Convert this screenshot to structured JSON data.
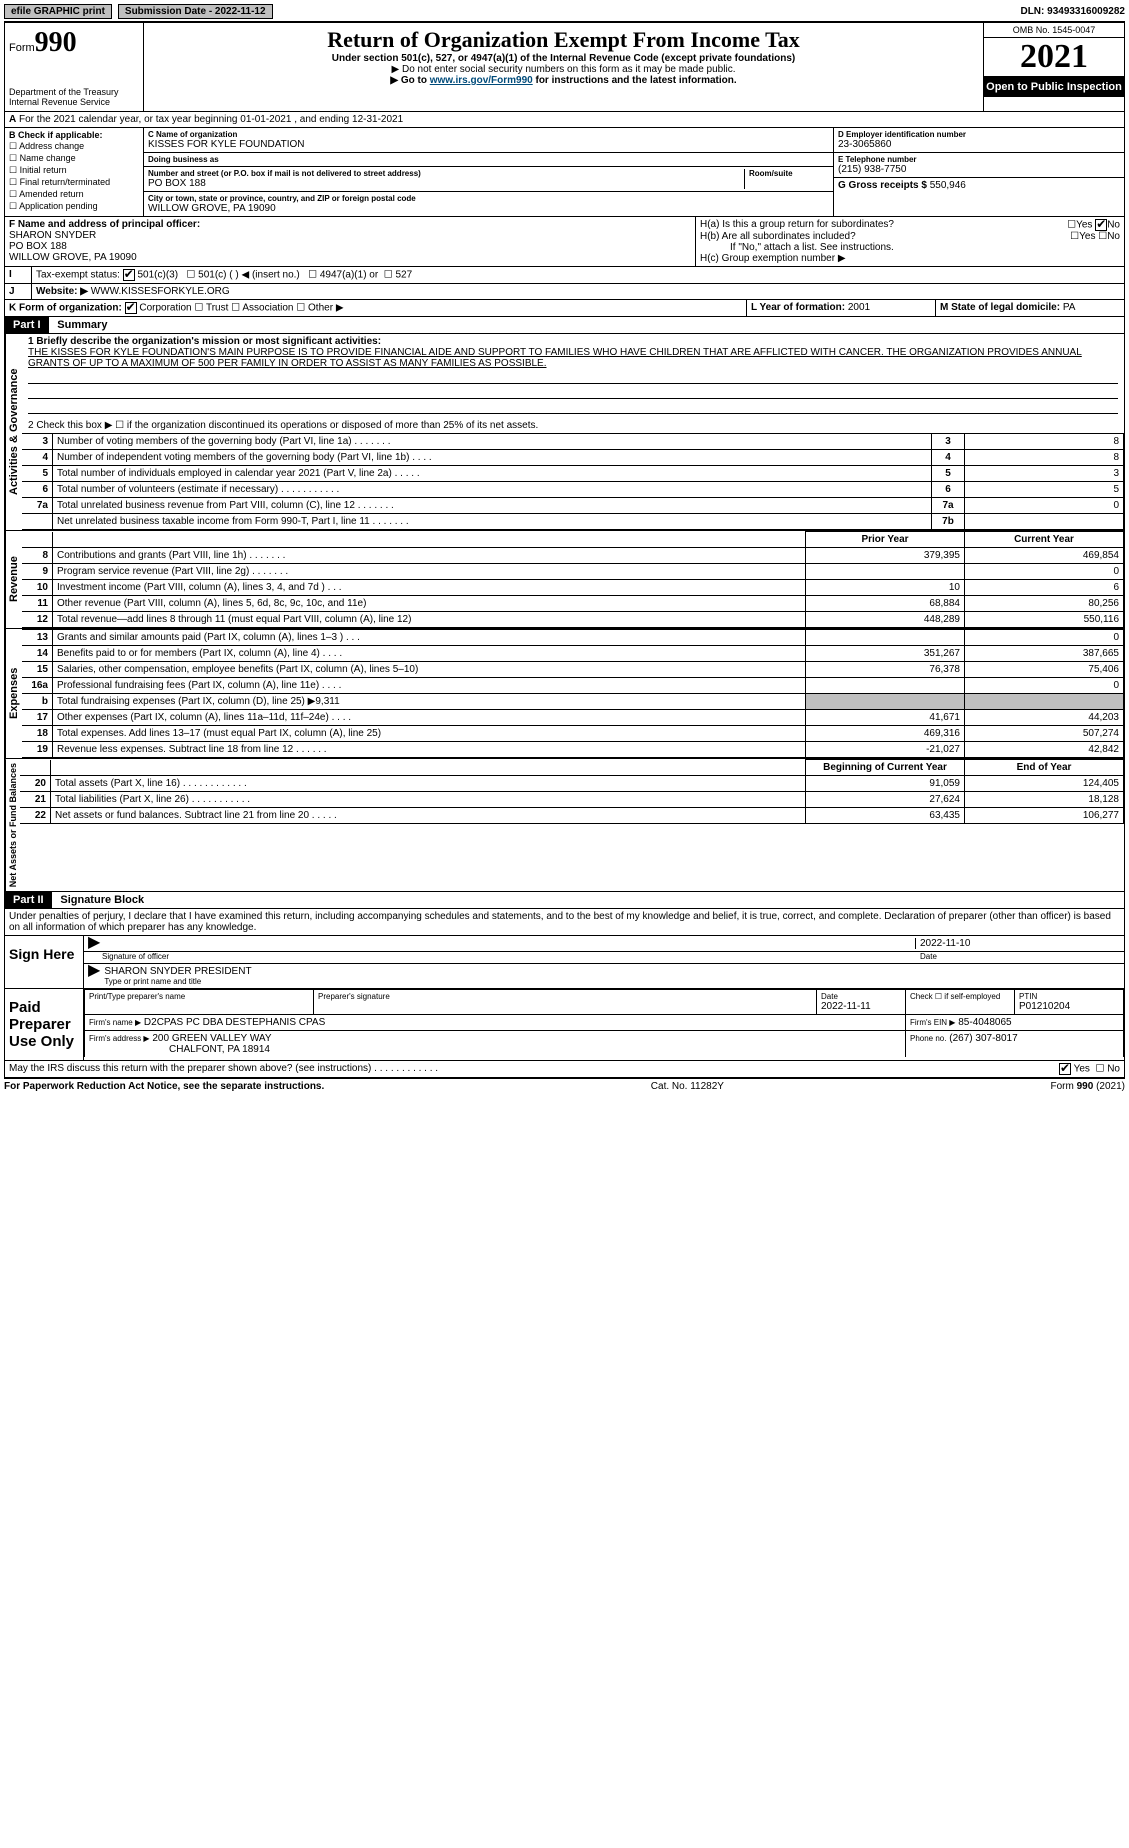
{
  "topbar": {
    "efile": "efile GRAPHIC print",
    "submission_label": "Submission Date - 2022-11-12",
    "dln_label": "DLN: 93493316009282"
  },
  "header": {
    "form_prefix": "Form",
    "form_number": "990",
    "dept": "Department of the Treasury",
    "irs": "Internal Revenue Service",
    "title": "Return of Organization Exempt From Income Tax",
    "sub1": "Under section 501(c), 527, or 4947(a)(1) of the Internal Revenue Code (except private foundations)",
    "sub2": "▶ Do not enter social security numbers on this form as it may be made public.",
    "sub3_pre": "▶ Go to ",
    "sub3_link": "www.irs.gov/Form990",
    "sub3_post": " for instructions and the latest information.",
    "omb": "OMB No. 1545-0047",
    "year": "2021",
    "open": "Open to Public Inspection"
  },
  "periodA": "For the 2021 calendar year, or tax year beginning 01-01-2021   , and ending 12-31-2021",
  "boxB": {
    "title": "B Check if applicable:",
    "opts": [
      "Address change",
      "Name change",
      "Initial return",
      "Final return/terminated",
      "Amended return",
      "Application pending"
    ]
  },
  "boxC": {
    "name_lbl": "C Name of organization",
    "name": "KISSES FOR KYLE FOUNDATION",
    "dba_lbl": "Doing business as",
    "dba": "",
    "street_lbl": "Number and street (or P.O. box if mail is not delivered to street address)",
    "room_lbl": "Room/suite",
    "street": "PO BOX 188",
    "city_lbl": "City or town, state or province, country, and ZIP or foreign postal code",
    "city": "WILLOW GROVE, PA  19090"
  },
  "boxD": {
    "lbl": "D Employer identification number",
    "val": "23-3065860"
  },
  "boxE": {
    "lbl": "E Telephone number",
    "val": "(215) 938-7750"
  },
  "boxG": {
    "lbl": "G Gross receipts $",
    "val": "550,946"
  },
  "boxF": {
    "lbl": "F Name and address of principal officer:",
    "name": "SHARON SNYDER",
    "addr1": "PO BOX 188",
    "addr2": "WILLOW GROVE, PA  19090"
  },
  "boxH": {
    "a": "H(a)  Is this a group return for subordinates?",
    "b": "H(b)  Are all subordinates included?",
    "note": "If \"No,\" attach a list. See instructions.",
    "c": "H(c)  Group exemption number ▶"
  },
  "boxI": {
    "lbl": "Tax-exempt status:",
    "o1": "501(c)(3)",
    "o2": "501(c) (  ) ◀ (insert no.)",
    "o3": "4947(a)(1) or",
    "o4": "527"
  },
  "boxJ": {
    "lbl": "Website: ▶",
    "val": "WWW.KISSESFORKYLE.ORG"
  },
  "boxK": {
    "lbl": "K Form of organization:",
    "o1": "Corporation",
    "o2": "Trust",
    "o3": "Association",
    "o4": "Other ▶"
  },
  "boxL": {
    "lbl": "L Year of formation:",
    "val": "2001"
  },
  "boxM": {
    "lbl": "M State of legal domicile:",
    "val": "PA"
  },
  "part1": {
    "hdr": "Part I",
    "title": "Summary",
    "q1": "1  Briefly describe the organization's mission or most significant activities:",
    "mission": "THE KISSES FOR KYLE FOUNDATION'S MAIN PURPOSE IS TO PROVIDE FINANCIAL AIDE AND SUPPORT TO FAMILIES WHO HAVE CHILDREN THAT ARE AFFLICTED WITH CANCER. THE ORGANIZATION PROVIDES ANNUAL GRANTS OF UP TO A MAXIMUM OF 500 PER FAMILY IN ORDER TO ASSIST AS MANY FAMILIES AS POSSIBLE.",
    "q2": "2  Check this box ▶ ☐  if the organization discontinued its operations or disposed of more than 25% of its net assets.",
    "vlabel_ag": "Activities & Governance",
    "vlabel_rev": "Revenue",
    "vlabel_exp": "Expenses",
    "vlabel_net": "Net Assets or Fund Balances",
    "col_prior": "Prior Year",
    "col_current": "Current Year",
    "col_begin": "Beginning of Current Year",
    "col_end": "End of Year",
    "lines_ag": [
      {
        "n": "3",
        "d": "Number of voting members of the governing body (Part VI, line 1a)   .    .    .    .    .    .    .",
        "b": "3",
        "v": "8"
      },
      {
        "n": "4",
        "d": "Number of independent voting members of the governing body (Part VI, line 1b)    .    .    .    .",
        "b": "4",
        "v": "8"
      },
      {
        "n": "5",
        "d": "Total number of individuals employed in calendar year 2021 (Part V, line 2a)   .    .    .    .    .",
        "b": "5",
        "v": "3"
      },
      {
        "n": "6",
        "d": "Total number of volunteers (estimate if necessary)    .    .    .    .    .    .    .    .    .    .    .",
        "b": "6",
        "v": "5"
      },
      {
        "n": "7a",
        "d": "Total unrelated business revenue from Part VIII, column (C), line 12   .    .    .    .    .    .    .",
        "b": "7a",
        "v": "0"
      },
      {
        "n": "",
        "d": "Net unrelated business taxable income from Form 990-T, Part I, line 11   .    .    .    .    .    .    .",
        "b": "7b",
        "v": ""
      }
    ],
    "lines_rev": [
      {
        "n": "8",
        "d": "Contributions and grants (Part VIII, line 1h)   .    .    .    .    .    .    .",
        "p": "379,395",
        "c": "469,854"
      },
      {
        "n": "9",
        "d": "Program service revenue (Part VIII, line 2g)   .    .    .    .    .    .    .",
        "p": "",
        "c": "0"
      },
      {
        "n": "10",
        "d": "Investment income (Part VIII, column (A), lines 3, 4, and 7d )    .    .    .",
        "p": "10",
        "c": "6"
      },
      {
        "n": "11",
        "d": "Other revenue (Part VIII, column (A), lines 5, 6d, 8c, 9c, 10c, and 11e)",
        "p": "68,884",
        "c": "80,256"
      },
      {
        "n": "12",
        "d": "Total revenue—add lines 8 through 11 (must equal Part VIII, column (A), line 12)",
        "p": "448,289",
        "c": "550,116"
      }
    ],
    "lines_exp": [
      {
        "n": "13",
        "d": "Grants and similar amounts paid (Part IX, column (A), lines 1–3 )    .    .    .",
        "p": "",
        "c": "0"
      },
      {
        "n": "14",
        "d": "Benefits paid to or for members (Part IX, column (A), line 4)   .    .    .    .",
        "p": "351,267",
        "c": "387,665"
      },
      {
        "n": "15",
        "d": "Salaries, other compensation, employee benefits (Part IX, column (A), lines 5–10)",
        "p": "76,378",
        "c": "75,406"
      },
      {
        "n": "16a",
        "d": "Professional fundraising fees (Part IX, column (A), line 11e)   .    .    .    .",
        "p": "",
        "c": "0"
      },
      {
        "n": "b",
        "d": "Total fundraising expenses (Part IX, column (D), line 25) ▶9,311",
        "p": "GRAY",
        "c": "GRAY"
      },
      {
        "n": "17",
        "d": "Other expenses (Part IX, column (A), lines 11a–11d, 11f–24e)   .    .    .    .",
        "p": "41,671",
        "c": "44,203"
      },
      {
        "n": "18",
        "d": "Total expenses. Add lines 13–17 (must equal Part IX, column (A), line 25)",
        "p": "469,316",
        "c": "507,274"
      },
      {
        "n": "19",
        "d": "Revenue less expenses. Subtract line 18 from line 12   .    .    .    .    .    .",
        "p": "-21,027",
        "c": "42,842"
      }
    ],
    "lines_net": [
      {
        "n": "20",
        "d": "Total assets (Part X, line 16)   .    .    .    .    .    .    .    .    .    .    .    .",
        "p": "91,059",
        "c": "124,405"
      },
      {
        "n": "21",
        "d": "Total liabilities (Part X, line 26)    .    .    .    .    .    .    .    .    .    .    .",
        "p": "27,624",
        "c": "18,128"
      },
      {
        "n": "22",
        "d": "Net assets or fund balances. Subtract line 21 from line 20   .    .    .    .    .",
        "p": "63,435",
        "c": "106,277"
      }
    ]
  },
  "part2": {
    "hdr": "Part II",
    "title": "Signature Block",
    "decl": "Under penalties of perjury, I declare that I have examined this return, including accompanying schedules and statements, and to the best of my knowledge and belief, it is true, correct, and complete. Declaration of preparer (other than officer) is based on all information of which preparer has any knowledge.",
    "sign_here": "Sign Here",
    "sig_officer": "Signature of officer",
    "sig_date": "2022-11-10",
    "date_lbl": "Date",
    "officer_name": "SHARON SNYDER  PRESIDENT",
    "type_lbl": "Type or print name and title",
    "paid": "Paid Preparer Use Only",
    "prep_name_lbl": "Print/Type preparer's name",
    "prep_sig_lbl": "Preparer's signature",
    "prep_date_lbl": "Date",
    "prep_date": "2022-11-11",
    "self_emp": "Check ☐ if self-employed",
    "ptin_lbl": "PTIN",
    "ptin": "P01210204",
    "firm_name_lbl": "Firm's name    ▶",
    "firm_name": "D2CPAS PC DBA DESTEPHANIS CPAS",
    "firm_ein_lbl": "Firm's EIN ▶",
    "firm_ein": "85-4048065",
    "firm_addr_lbl": "Firm's address ▶",
    "firm_addr1": "200 GREEN VALLEY WAY",
    "firm_addr2": "CHALFONT, PA  18914",
    "firm_phone_lbl": "Phone no.",
    "firm_phone": "(267) 307-8017",
    "discuss": "May the IRS discuss this return with the preparer shown above? (see instructions)   .    .    .    .    .    .    .    .    .    .    .    ."
  },
  "footer": {
    "left": "For Paperwork Reduction Act Notice, see the separate instructions.",
    "mid": "Cat. No. 11282Y",
    "right": "Form 990 (2021)"
  },
  "yesno": {
    "yes": "Yes",
    "no": "No"
  }
}
